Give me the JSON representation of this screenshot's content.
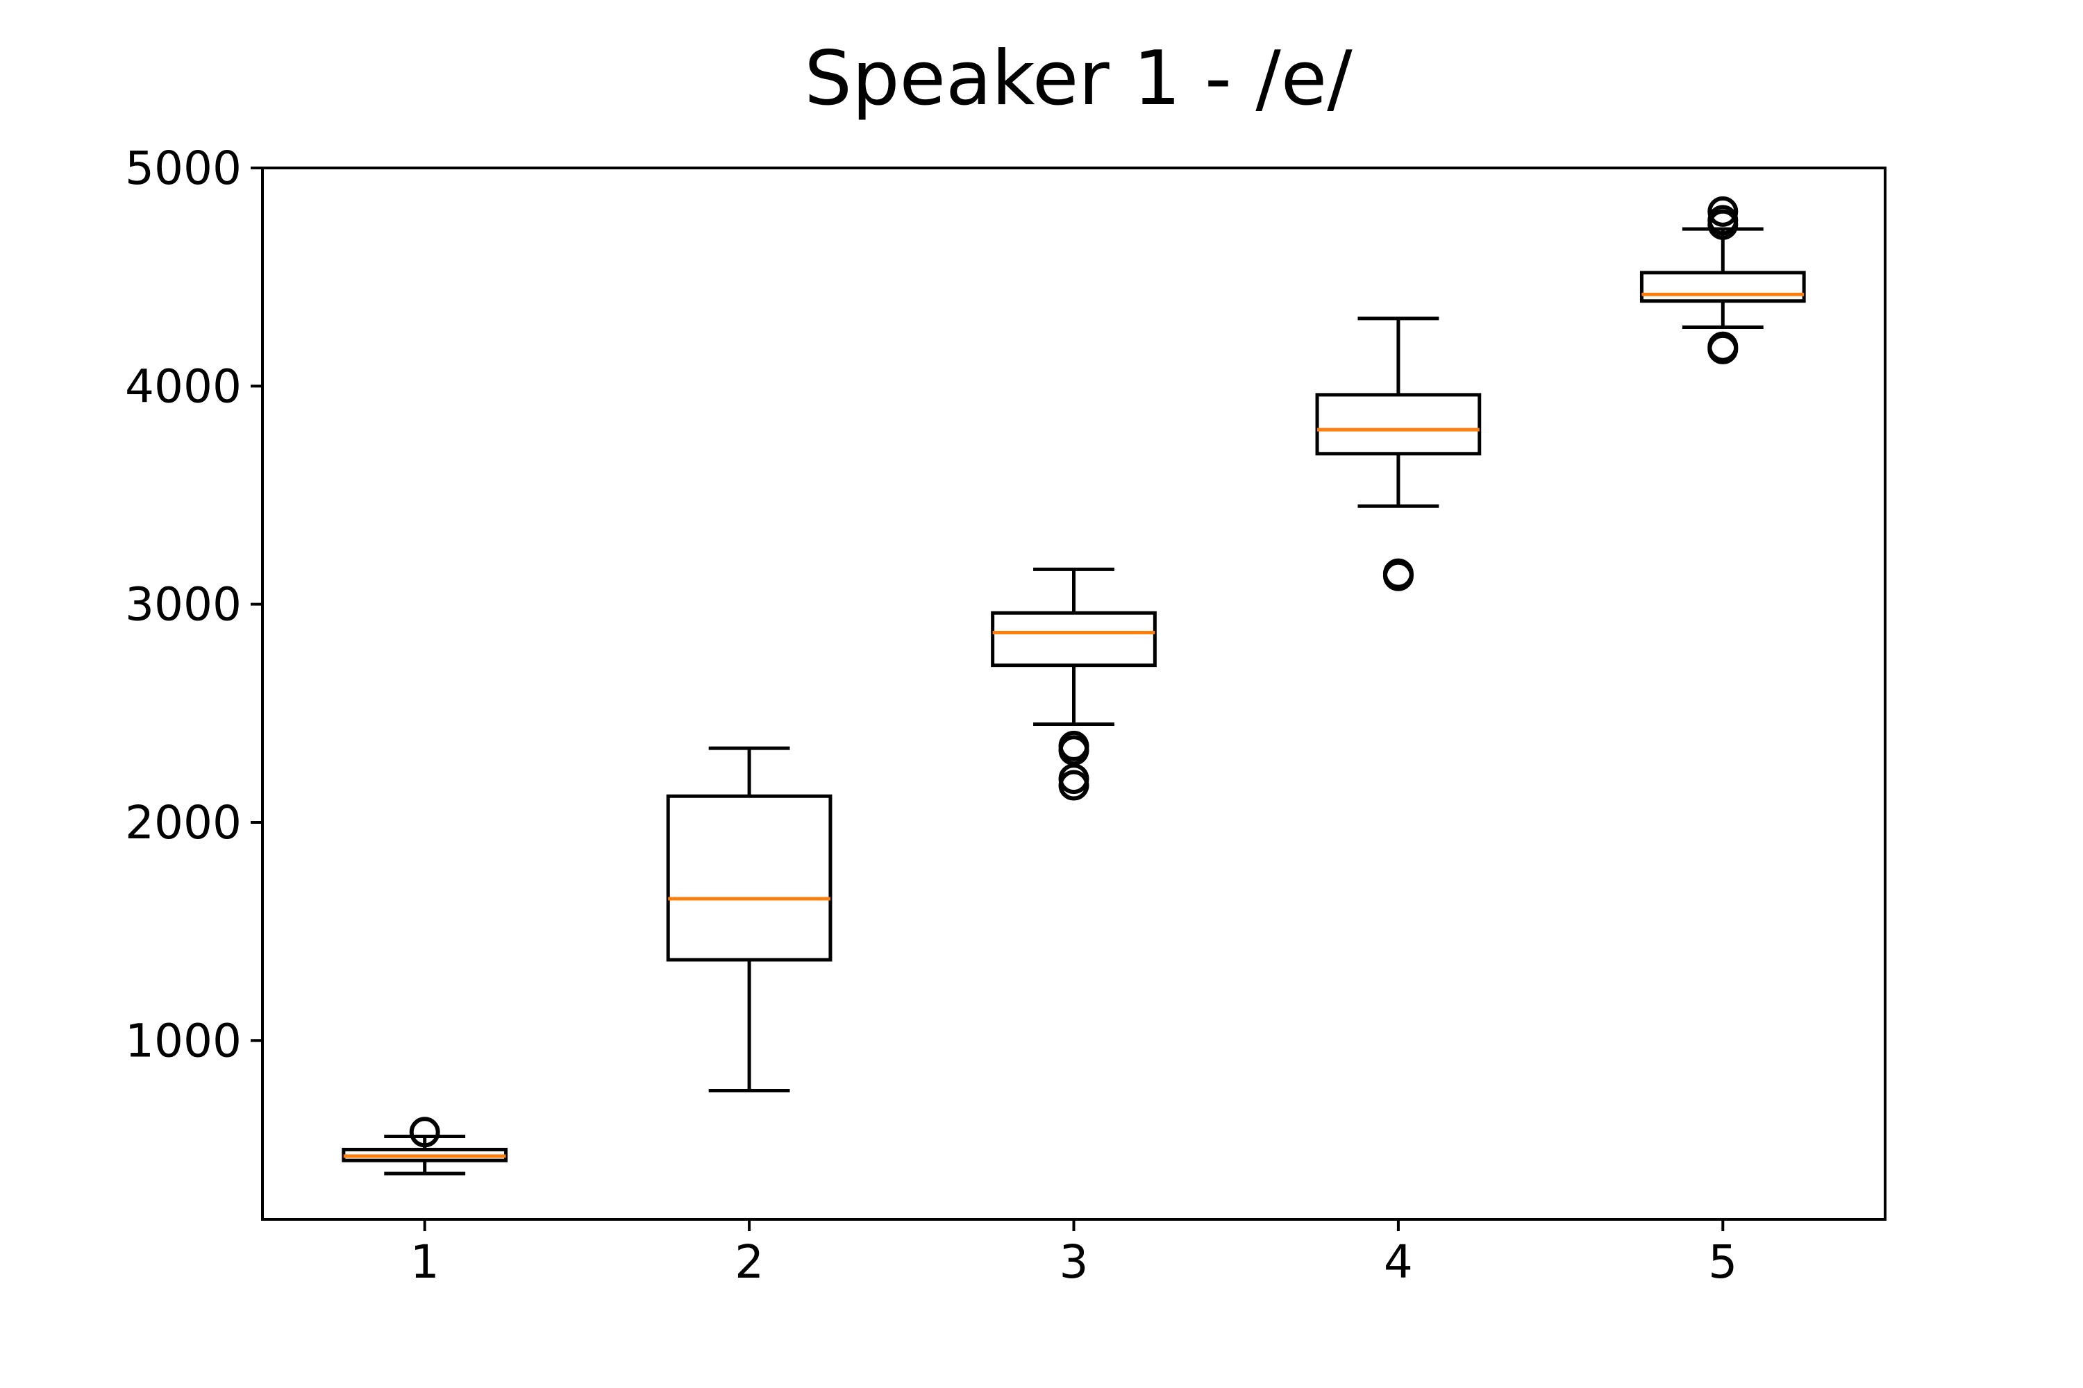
{
  "chart_data": {
    "type": "box",
    "title": "Speaker 1 - /e/",
    "xlabel": "",
    "ylabel": "",
    "categories": [
      "1",
      "2",
      "3",
      "4",
      "5"
    ],
    "ylim": [
      180,
      5000
    ],
    "yticks": [
      1000,
      2000,
      3000,
      4000,
      5000
    ],
    "grid": false,
    "median_color": "#ff7f0e",
    "box_color": "#000000",
    "boxes": [
      {
        "label": "1",
        "whislo": 390,
        "q1": 450,
        "med": 470,
        "q3": 500,
        "whishi": 560,
        "fliers": [
          580
        ]
      },
      {
        "label": "2",
        "whislo": 770,
        "q1": 1370,
        "med": 1650,
        "q3": 2120,
        "whishi": 2340,
        "fliers": []
      },
      {
        "label": "3",
        "whislo": 2450,
        "q1": 2720,
        "med": 2870,
        "q3": 2960,
        "whishi": 3160,
        "fliers": [
          2330,
          2350,
          2200,
          2170
        ]
      },
      {
        "label": "4",
        "whislo": 3450,
        "q1": 3690,
        "med": 3800,
        "q3": 3960,
        "whishi": 4310,
        "fliers": [
          3130,
          3140
        ]
      },
      {
        "label": "5",
        "whislo": 4270,
        "q1": 4390,
        "med": 4420,
        "q3": 4520,
        "whishi": 4720,
        "fliers": [
          4800,
          4760,
          4740,
          4180,
          4170
        ]
      }
    ]
  }
}
